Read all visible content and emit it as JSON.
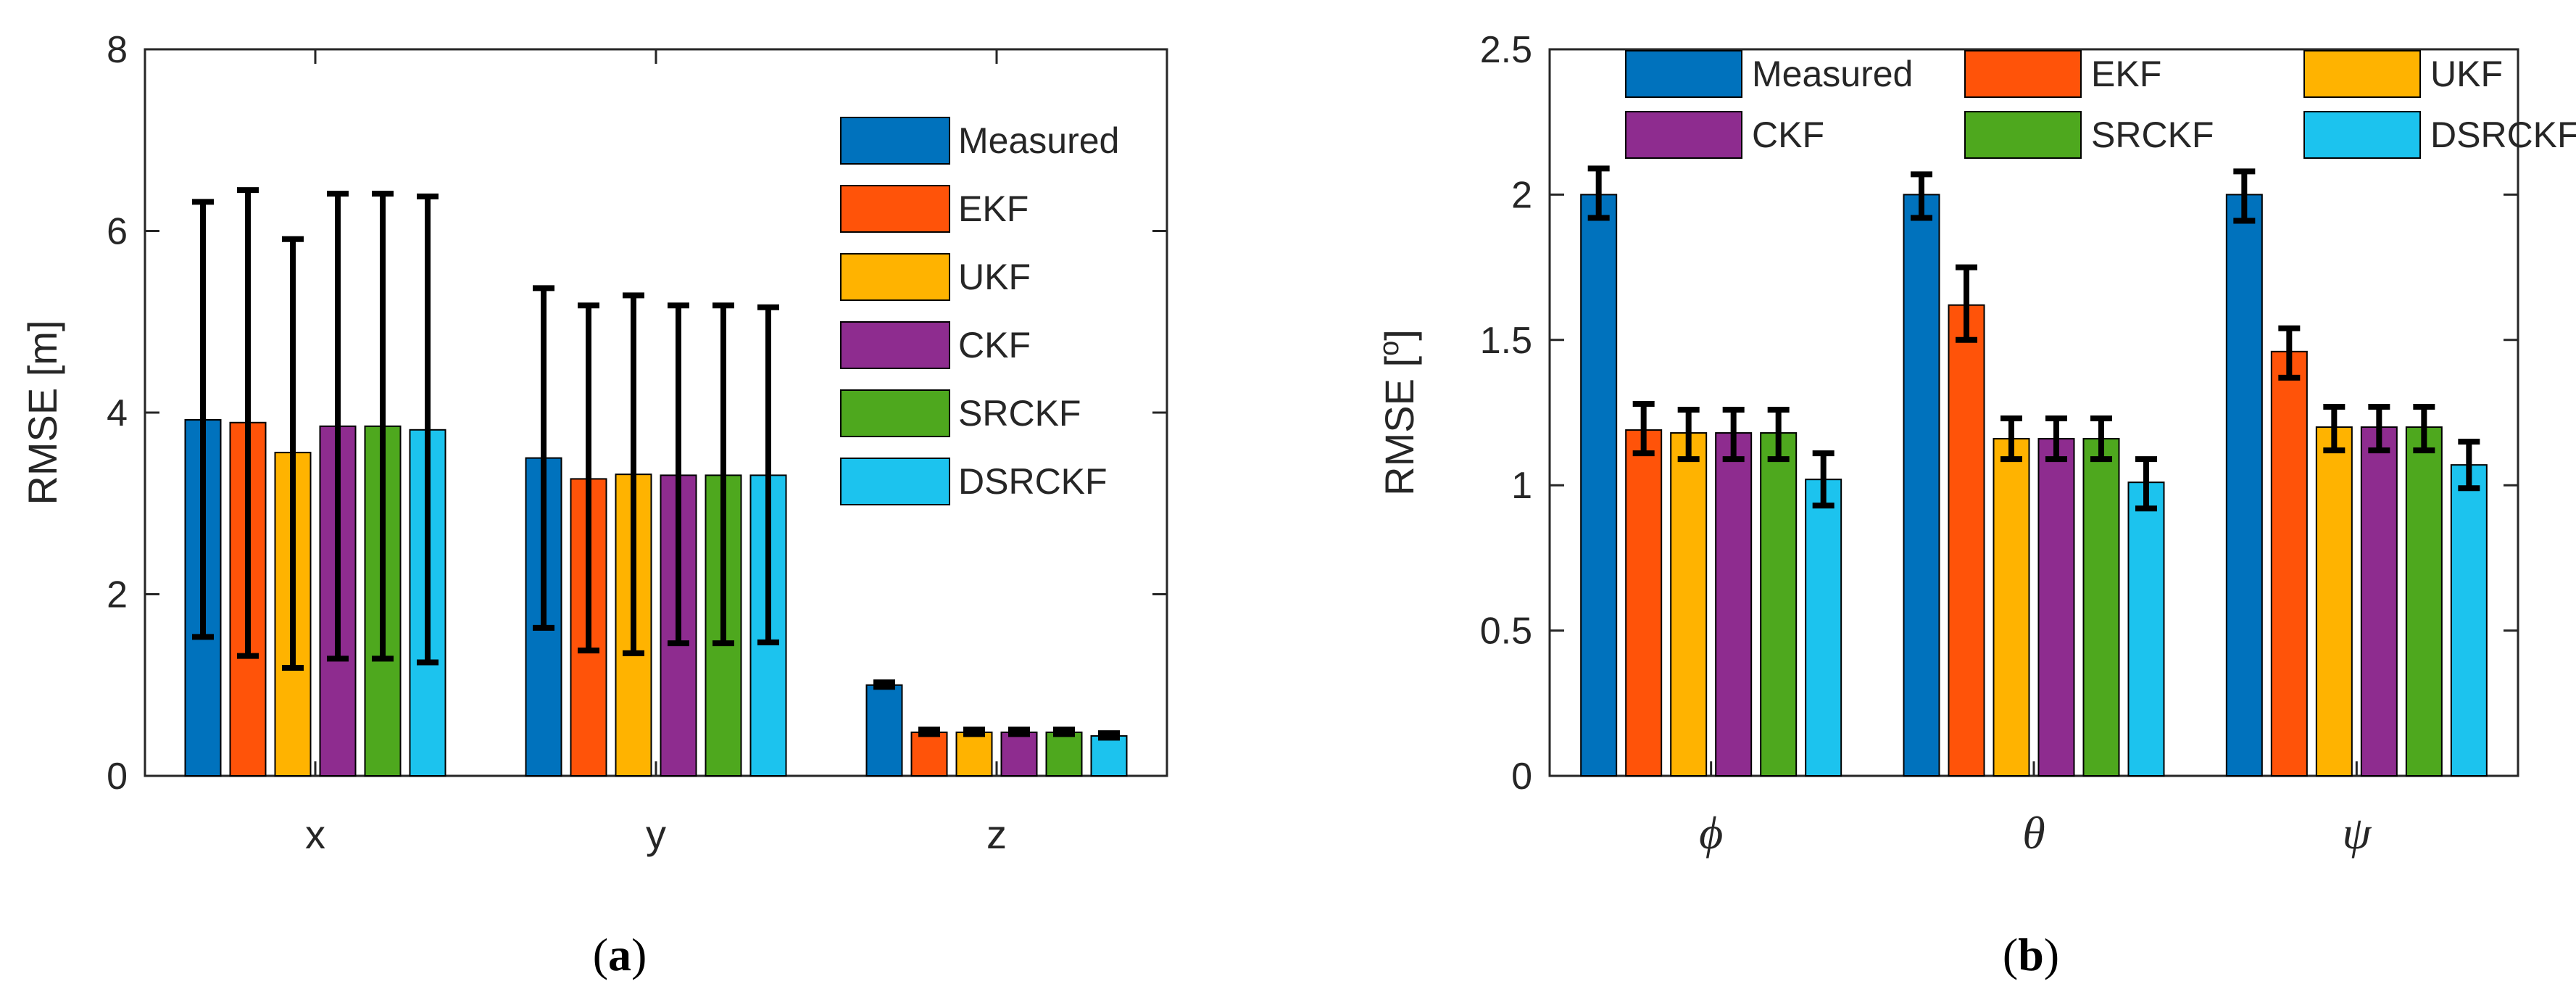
{
  "colors": {
    "Measured": "#0072BD",
    "EKF": "#FF5309",
    "UKF": "#FFB300",
    "CKF": "#8E2C8F",
    "SRCKF": "#4EA81E",
    "DSRCKF": "#1CC3EE",
    "errorbar": "#000000",
    "axis": "#262626"
  },
  "chart_data": [
    {
      "id": "a",
      "type": "bar",
      "sublabel": {
        "open": "(",
        "letter": "a",
        "close": ")"
      },
      "ylabel": "RMSE [m]",
      "ylim": [
        0,
        8
      ],
      "yticks": [
        "0",
        "2",
        "4",
        "6",
        "8"
      ],
      "categories": [
        "x",
        "y",
        "z"
      ],
      "legend_placement": "inside-right",
      "series": [
        {
          "name": "Measured",
          "values": [
            3.92,
            3.5,
            1.0
          ],
          "err_low": [
            1.53,
            1.63,
            0.98
          ],
          "err_high": [
            6.32,
            5.37,
            1.03
          ]
        },
        {
          "name": "EKF",
          "values": [
            3.89,
            3.27,
            0.48
          ],
          "err_low": [
            1.32,
            1.38,
            0.46
          ],
          "err_high": [
            6.45,
            5.18,
            0.51
          ]
        },
        {
          "name": "UKF",
          "values": [
            3.56,
            3.32,
            0.48
          ],
          "err_low": [
            1.19,
            1.35,
            0.46
          ],
          "err_high": [
            5.91,
            5.29,
            0.51
          ]
        },
        {
          "name": "CKF",
          "values": [
            3.85,
            3.31,
            0.48
          ],
          "err_low": [
            1.29,
            1.46,
            0.46
          ],
          "err_high": [
            6.41,
            5.18,
            0.51
          ]
        },
        {
          "name": "SRCKF",
          "values": [
            3.85,
            3.31,
            0.48
          ],
          "err_low": [
            1.29,
            1.46,
            0.46
          ],
          "err_high": [
            6.41,
            5.18,
            0.51
          ]
        },
        {
          "name": "DSRCKF",
          "values": [
            3.81,
            3.31,
            0.44
          ],
          "err_low": [
            1.25,
            1.47,
            0.42
          ],
          "err_high": [
            6.38,
            5.16,
            0.47
          ]
        }
      ]
    },
    {
      "id": "b",
      "type": "bar",
      "sublabel": {
        "open": "(",
        "letter": "b",
        "close": ")"
      },
      "ylabel": "RMSE [",
      "ylabel_sup": "o",
      "ylabel_end": "]",
      "ylim": [
        0,
        2.5
      ],
      "yticks": [
        "0",
        "0.5",
        "1",
        "1.5",
        "2",
        "2.5"
      ],
      "categories": [
        "ϕ",
        "θ",
        "ψ"
      ],
      "legend_placement": "top, 3 columns",
      "series": [
        {
          "name": "Measured",
          "values": [
            2.0,
            2.0,
            2.0
          ],
          "err_low": [
            1.92,
            1.92,
            1.91
          ],
          "err_high": [
            2.09,
            2.07,
            2.08
          ]
        },
        {
          "name": "EKF",
          "values": [
            1.19,
            1.62,
            1.46
          ],
          "err_low": [
            1.11,
            1.5,
            1.37
          ],
          "err_high": [
            1.28,
            1.75,
            1.54
          ]
        },
        {
          "name": "UKF",
          "values": [
            1.18,
            1.16,
            1.2
          ],
          "err_low": [
            1.09,
            1.09,
            1.12
          ],
          "err_high": [
            1.26,
            1.23,
            1.27
          ]
        },
        {
          "name": "CKF",
          "values": [
            1.18,
            1.16,
            1.2
          ],
          "err_low": [
            1.09,
            1.09,
            1.12
          ],
          "err_high": [
            1.26,
            1.23,
            1.27
          ]
        },
        {
          "name": "SRCKF",
          "values": [
            1.18,
            1.16,
            1.2
          ],
          "err_low": [
            1.09,
            1.09,
            1.12
          ],
          "err_high": [
            1.26,
            1.23,
            1.27
          ]
        },
        {
          "name": "DSRCKF",
          "values": [
            1.02,
            1.01,
            1.07
          ],
          "err_low": [
            0.93,
            0.92,
            0.99
          ],
          "err_high": [
            1.11,
            1.09,
            1.15
          ]
        }
      ]
    }
  ]
}
